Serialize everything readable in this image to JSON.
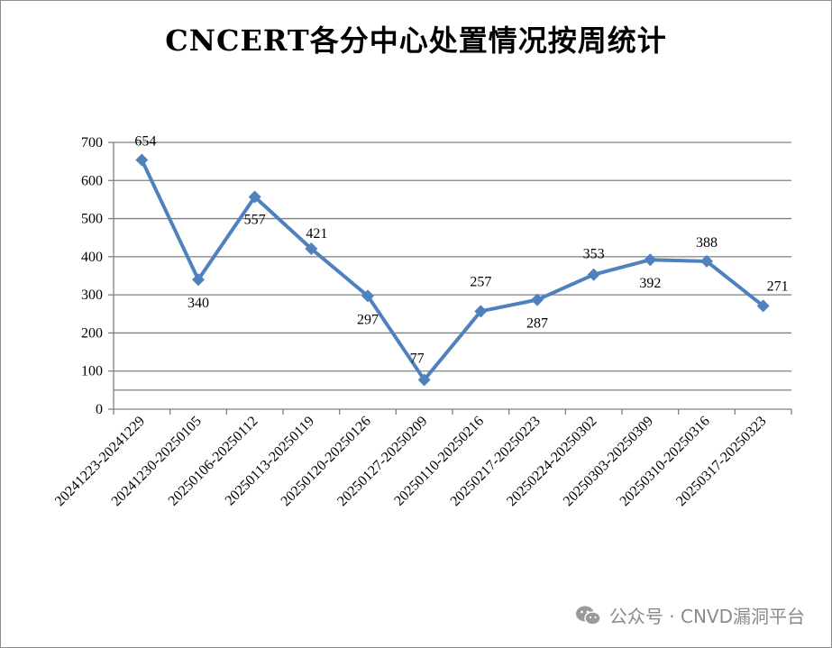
{
  "chart_data": {
    "type": "line",
    "title": "CNCERT各分中心处置情况按周统计",
    "xlabel": "",
    "ylabel": "",
    "ylim": [
      0,
      700
    ],
    "yticks": [
      0,
      100,
      200,
      300,
      400,
      500,
      600,
      700
    ],
    "grid": true,
    "legend": "none",
    "categories": [
      "20241223-20241229",
      "20241230-20250105",
      "20250106-20250112",
      "20250113-20250119",
      "20250120-20250126",
      "20250127-20250209",
      "20250110-20250216",
      "20250217-20250223",
      "20250224-20250302",
      "20250303-20250309",
      "20250310-20250316",
      "20250317-20250323"
    ],
    "series": [
      {
        "values": [
          654,
          340,
          557,
          421,
          297,
          77,
          257,
          287,
          353,
          392,
          388,
          271
        ],
        "color": "#4f81bd"
      }
    ]
  },
  "watermark": {
    "icon": "wechat-icon",
    "text": "公众号 · CNVD漏洞平台"
  }
}
